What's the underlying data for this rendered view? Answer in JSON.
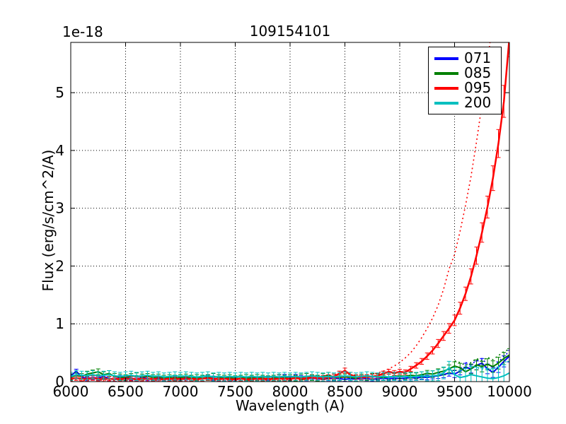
{
  "chart_data": {
    "type": "line",
    "title": "109154101",
    "xlabel": "Wavelength (A)",
    "ylabel": "Flux (erg/s/cm^2/A)",
    "y_offset_label": "1e-18",
    "xlim": [
      6000,
      10000
    ],
    "ylim": [
      0,
      5.87
    ],
    "xticks": [
      6000,
      6500,
      7000,
      7500,
      8000,
      8500,
      9000,
      9500,
      10000
    ],
    "yticks": [
      0,
      1,
      2,
      3,
      4,
      5
    ],
    "grid": true,
    "grid_color": "#000000",
    "background_color": "#ffffff",
    "legend_position": "upper right",
    "wavelengths": [
      6000,
      6050,
      6100,
      6150,
      6200,
      6250,
      6300,
      6350,
      6400,
      6450,
      6500,
      6550,
      6600,
      6650,
      6700,
      6750,
      6800,
      6850,
      6900,
      6950,
      7000,
      7050,
      7100,
      7150,
      7200,
      7250,
      7300,
      7350,
      7400,
      7450,
      7500,
      7550,
      7600,
      7650,
      7700,
      7750,
      7800,
      7850,
      7900,
      7950,
      8000,
      8050,
      8100,
      8150,
      8200,
      8250,
      8300,
      8350,
      8400,
      8450,
      8500,
      8550,
      8600,
      8650,
      8700,
      8750,
      8800,
      8850,
      8900,
      8950,
      9000,
      9050,
      9100,
      9150,
      9200,
      9250,
      9300,
      9350,
      9400,
      9450,
      9500,
      9550,
      9600,
      9650,
      9700,
      9750,
      9800,
      9850,
      9900,
      9950,
      10000
    ],
    "series": [
      {
        "name": "071",
        "color": "#0000ff",
        "lw": 2,
        "values": [
          0.1,
          0.18,
          0.08,
          0.05,
          0.07,
          0.06,
          0.09,
          0.05,
          0.04,
          0.07,
          0.05,
          0.06,
          0.04,
          0.07,
          0.05,
          0.04,
          0.06,
          0.05,
          0.04,
          0.05,
          0.04,
          0.06,
          0.05,
          0.04,
          0.05,
          0.08,
          0.06,
          0.04,
          0.05,
          0.04,
          0.03,
          0.05,
          0.04,
          0.05,
          0.04,
          0.05,
          0.06,
          0.04,
          0.08,
          0.09,
          0.06,
          0.09,
          0.07,
          0.05,
          0.06,
          0.05,
          0.04,
          0.05,
          0.06,
          0.05,
          0.04,
          0.05,
          0.04,
          0.06,
          0.05,
          0.04,
          0.05,
          0.06,
          0.05,
          0.06,
          0.05,
          0.06,
          0.07,
          0.06,
          0.08,
          0.07,
          0.09,
          0.1,
          0.12,
          0.15,
          0.13,
          0.18,
          0.25,
          0.22,
          0.28,
          0.32,
          0.22,
          0.16,
          0.25,
          0.35,
          0.44
        ],
        "err": {
          "base": 0.035,
          "end": 0.1,
          "rel": 0,
          "ramp_start": 9200,
          "ramp_end": 10000
        },
        "dotted": {
          "start_index": 72,
          "values": [
            0.33,
            0.3,
            0.36,
            0.4,
            0.3,
            0.25,
            0.34,
            0.44,
            0.52
          ]
        }
      },
      {
        "name": "085",
        "color": "#008000",
        "lw": 2,
        "values": [
          0.08,
          0.1,
          0.09,
          0.13,
          0.15,
          0.17,
          0.12,
          0.14,
          0.09,
          0.08,
          0.07,
          0.09,
          0.1,
          0.08,
          0.09,
          0.07,
          0.08,
          0.06,
          0.07,
          0.06,
          0.07,
          0.08,
          0.06,
          0.07,
          0.06,
          0.07,
          0.09,
          0.07,
          0.06,
          0.07,
          0.05,
          0.06,
          0.07,
          0.06,
          0.07,
          0.06,
          0.05,
          0.06,
          0.07,
          0.06,
          0.07,
          0.06,
          0.08,
          0.09,
          0.07,
          0.06,
          0.09,
          0.11,
          0.08,
          0.07,
          0.08,
          0.07,
          0.06,
          0.08,
          0.07,
          0.09,
          0.08,
          0.07,
          0.08,
          0.09,
          0.1,
          0.09,
          0.11,
          0.1,
          0.12,
          0.14,
          0.13,
          0.16,
          0.18,
          0.22,
          0.27,
          0.24,
          0.17,
          0.22,
          0.29,
          0.26,
          0.3,
          0.26,
          0.32,
          0.4,
          0.46
        ],
        "err": {
          "base": 0.05,
          "end": 0.11,
          "rel": 0,
          "ramp_start": 9200,
          "ramp_end": 10000
        },
        "dotted": {
          "start_index": 70,
          "values": [
            0.36,
            0.33,
            0.28,
            0.33,
            0.4,
            0.36,
            0.42,
            0.38,
            0.45,
            0.52,
            0.56
          ]
        }
      },
      {
        "name": "095",
        "color": "#ff0000",
        "lw": 2.5,
        "values": [
          0.05,
          0.06,
          0.05,
          0.04,
          0.06,
          0.05,
          0.04,
          0.05,
          0.04,
          0.05,
          0.04,
          0.05,
          0.04,
          0.05,
          0.04,
          0.05,
          0.04,
          0.04,
          0.05,
          0.04,
          0.05,
          0.04,
          0.05,
          0.04,
          0.05,
          0.06,
          0.05,
          0.04,
          0.05,
          0.04,
          0.04,
          0.05,
          0.04,
          0.04,
          0.05,
          0.04,
          0.05,
          0.04,
          0.05,
          0.05,
          0.05,
          0.06,
          0.05,
          0.06,
          0.07,
          0.06,
          0.07,
          0.08,
          0.09,
          0.14,
          0.19,
          0.12,
          0.08,
          0.07,
          0.08,
          0.09,
          0.1,
          0.14,
          0.17,
          0.15,
          0.17,
          0.16,
          0.22,
          0.28,
          0.35,
          0.44,
          0.54,
          0.66,
          0.79,
          0.92,
          1.06,
          1.27,
          1.52,
          1.82,
          2.18,
          2.58,
          3.02,
          3.52,
          4.12,
          4.85,
          5.95
        ],
        "err": {
          "base": 0.035,
          "end": 0.06,
          "rel": 0.045,
          "ramp_start": 9200,
          "ramp_end": 10000
        },
        "dotted": {
          "start_index": 0,
          "values": [
            0.02,
            0.03,
            0.02,
            0.02,
            0.03,
            0.02,
            0.03,
            0.02,
            0.02,
            0.03,
            0.02,
            0.02,
            0.03,
            0.02,
            0.03,
            0.02,
            0.02,
            0.03,
            0.02,
            0.02,
            0.03,
            0.02,
            0.02,
            0.03,
            0.02,
            0.03,
            0.02,
            0.02,
            0.03,
            0.02,
            0.02,
            0.03,
            0.02,
            0.02,
            0.03,
            0.02,
            0.03,
            0.02,
            0.02,
            0.03,
            0.03,
            0.03,
            0.03,
            0.04,
            0.04,
            0.04,
            0.05,
            0.05,
            0.06,
            0.07,
            0.08,
            0.08,
            0.09,
            0.1,
            0.11,
            0.13,
            0.15,
            0.18,
            0.22,
            0.27,
            0.33,
            0.41,
            0.5,
            0.62,
            0.76,
            0.92,
            1.1,
            1.32,
            1.6,
            1.95,
            2.2,
            2.6,
            3.05,
            3.55,
            4.15,
            4.8,
            5.5,
            6.3,
            7.2,
            8.3,
            9.5
          ]
        }
      },
      {
        "name": "200",
        "color": "#00bfbf",
        "lw": 2,
        "values": [
          0.09,
          0.12,
          0.11,
          0.1,
          0.12,
          0.1,
          0.11,
          0.12,
          0.1,
          0.09,
          0.1,
          0.11,
          0.09,
          0.1,
          0.11,
          0.09,
          0.1,
          0.08,
          0.09,
          0.1,
          0.09,
          0.1,
          0.09,
          0.08,
          0.09,
          0.1,
          0.08,
          0.09,
          0.08,
          0.09,
          0.08,
          0.09,
          0.08,
          0.09,
          0.08,
          0.09,
          0.08,
          0.09,
          0.08,
          0.09,
          0.08,
          0.09,
          0.08,
          0.09,
          0.1,
          0.09,
          0.08,
          0.09,
          0.08,
          0.09,
          0.1,
          0.09,
          0.08,
          0.09,
          0.1,
          0.09,
          0.08,
          0.09,
          0.08,
          0.09,
          0.08,
          0.09,
          0.08,
          0.09,
          0.1,
          0.09,
          0.1,
          0.11,
          0.15,
          0.24,
          0.12,
          0.07,
          0.09,
          0.12,
          0.1,
          0.08,
          0.06,
          0.05,
          0.07,
          0.1,
          0.15
        ],
        "err": {
          "base": 0.07,
          "end": 0.2,
          "rel": 0,
          "ramp_start": 9200,
          "ramp_end": 10000
        },
        "dotted": {
          "start_index": 72,
          "values": [
            0.26,
            0.28,
            0.24,
            0.22,
            0.2,
            0.22,
            0.26,
            0.32,
            0.38
          ]
        }
      }
    ]
  }
}
